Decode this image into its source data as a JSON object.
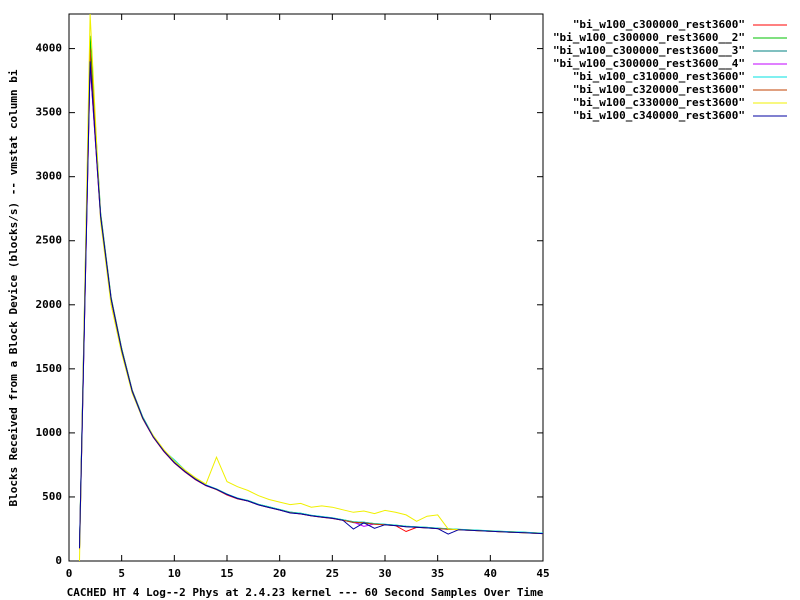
{
  "chart_data": {
    "type": "line",
    "xlabel": "CACHED HT 4 Log--2 Phys at 2.4.23 kernel --- 60 Second Samples Over Time",
    "ylabel": "Blocks Received from a Block Device (blocks/s) -- vmstat column bi",
    "x": [
      1,
      2,
      3,
      4,
      5,
      6,
      7,
      8,
      9,
      10,
      11,
      12,
      13,
      14,
      15,
      16,
      17,
      18,
      19,
      20,
      21,
      22,
      23,
      24,
      25,
      26,
      27,
      28,
      29,
      30,
      31,
      32,
      33,
      34,
      35,
      36,
      37,
      38,
      39,
      40,
      41,
      42,
      43,
      44,
      45
    ],
    "xlim": [
      0,
      45
    ],
    "xticks": [
      0,
      5,
      10,
      15,
      20,
      25,
      30,
      35,
      40,
      45
    ],
    "ylim": [
      0,
      4270
    ],
    "yticks": [
      0,
      500,
      1000,
      1500,
      2000,
      2500,
      3000,
      3500,
      4000
    ],
    "legend": "top-right",
    "series": [
      {
        "name": "\"bi_w100_c300000_rest3600\"",
        "color": "#ff0000",
        "values": [
          90,
          3880,
          2680,
          2040,
          1640,
          1320,
          1110,
          965,
          855,
          765,
          695,
          635,
          588,
          558,
          515,
          485,
          468,
          438,
          418,
          398,
          378,
          368,
          352,
          342,
          332,
          318,
          302,
          298,
          288,
          282,
          276,
          230,
          262,
          258,
          253,
          248,
          244,
          240,
          236,
          232,
          228,
          225,
          222,
          218,
          214
        ]
      },
      {
        "name": "\"bi_w100_c300000_rest3600__2\"",
        "color": "#00c000",
        "values": [
          110,
          4100,
          2720,
          2060,
          1660,
          1335,
          1125,
          975,
          862,
          772,
          702,
          642,
          592,
          562,
          522,
          488,
          472,
          442,
          422,
          402,
          382,
          372,
          356,
          346,
          336,
          322,
          306,
          302,
          292,
          286,
          280,
          272,
          266,
          262,
          256,
          252,
          247,
          243,
          239,
          235,
          231,
          228,
          225,
          221,
          217
        ]
      },
      {
        "name": "\"bi_w100_c300000_rest3600__3\"",
        "color": "#008080",
        "values": [
          100,
          3950,
          2700,
          2050,
          1650,
          1330,
          1120,
          970,
          860,
          770,
          700,
          640,
          590,
          560,
          520,
          490,
          470,
          440,
          420,
          400,
          380,
          370,
          355,
          345,
          335,
          320,
          300,
          295,
          290,
          285,
          278,
          270,
          265,
          260,
          255,
          250,
          246,
          242,
          238,
          234,
          230,
          227,
          224,
          220,
          216
        ]
      },
      {
        "name": "\"bi_w100_c300000_rest3600__4\"",
        "color": "#c000ff",
        "values": [
          95,
          3870,
          2690,
          2045,
          1645,
          1325,
          1115,
          968,
          858,
          768,
          698,
          638,
          588,
          560,
          518,
          488,
          468,
          438,
          418,
          398,
          378,
          368,
          354,
          344,
          334,
          319,
          304,
          270,
          289,
          284,
          277,
          269,
          264,
          259,
          254,
          249,
          245,
          241,
          237,
          233,
          229,
          226,
          223,
          219,
          215
        ]
      },
      {
        "name": "\"bi_w100_c310000_rest3600\"",
        "color": "#00e0e0",
        "values": [
          105,
          3950,
          2710,
          2055,
          1655,
          1335,
          1125,
          975,
          862,
          790,
          710,
          645,
          595,
          562,
          522,
          492,
          472,
          442,
          422,
          402,
          382,
          372,
          357,
          347,
          337,
          322,
          307,
          302,
          292,
          287,
          280,
          272,
          267,
          262,
          257,
          252,
          248,
          244,
          240,
          236,
          232,
          229,
          226,
          222,
          218
        ]
      },
      {
        "name": "\"bi_w100_c320000_rest3600\"",
        "color": "#c04000",
        "values": [
          100,
          4000,
          2700,
          2050,
          1650,
          1330,
          1118,
          968,
          860,
          770,
          700,
          640,
          590,
          558,
          518,
          488,
          468,
          438,
          418,
          398,
          378,
          368,
          353,
          343,
          333,
          318,
          303,
          298,
          288,
          283,
          276,
          268,
          263,
          258,
          253,
          248,
          244,
          240,
          236,
          232,
          228,
          225,
          222,
          218,
          214
        ]
      },
      {
        "name": "\"bi_w100_c330000_rest3600\"",
        "color": "#f0f000",
        "values": [
          0,
          4270,
          2650,
          2000,
          1620,
          1310,
          1110,
          980,
          870,
          780,
          710,
          650,
          600,
          810,
          620,
          580,
          550,
          510,
          480,
          460,
          440,
          450,
          420,
          430,
          420,
          400,
          380,
          390,
          370,
          395,
          380,
          360,
          310,
          350,
          360,
          250,
          245,
          240,
          236,
          232,
          228,
          225,
          222,
          218,
          214
        ]
      },
      {
        "name": "\"bi_w100_c340000_rest3600\"",
        "color": "#0000a0",
        "values": [
          100,
          3900,
          2690,
          2045,
          1645,
          1325,
          1115,
          968,
          858,
          768,
          698,
          638,
          590,
          560,
          520,
          488,
          468,
          438,
          418,
          398,
          375,
          368,
          353,
          343,
          333,
          318,
          250,
          298,
          255,
          283,
          276,
          268,
          263,
          258,
          253,
          210,
          244,
          240,
          236,
          232,
          228,
          225,
          222,
          218,
          214
        ]
      }
    ]
  }
}
